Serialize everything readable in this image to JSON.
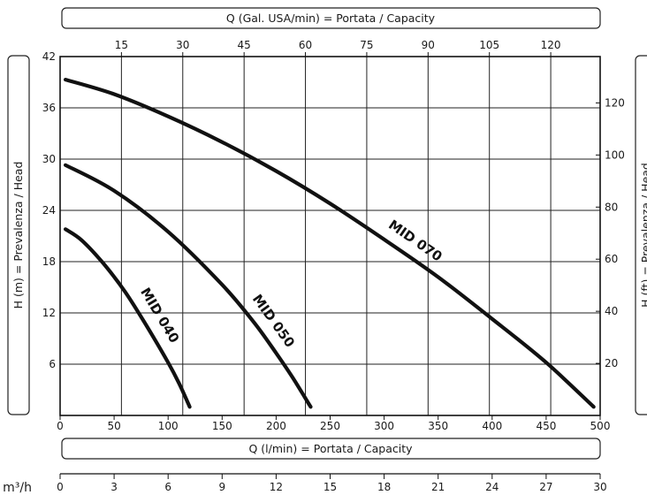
{
  "chart_data": {
    "type": "line",
    "top_axis_label": "Q (Gal. USA/min) = Portata / Capacity",
    "bottom_axis_label": "Q (l/min) = Portata / Capacity",
    "left_axis_label": "H (m) = Prevalenza / Head",
    "right_axis_label": "H (ft) = Prevalenza / Head",
    "m3h_unit": "m³/h",
    "x_lpm": {
      "min": 0,
      "max": 500,
      "ticks": [
        0,
        50,
        100,
        150,
        200,
        250,
        300,
        350,
        400,
        450,
        500
      ]
    },
    "x_gpm": {
      "ticks": [
        15,
        30,
        45,
        60,
        75,
        90,
        105,
        120
      ]
    },
    "x_m3h": {
      "ticks": [
        0,
        3,
        6,
        9,
        12,
        15,
        18,
        21,
        24,
        27,
        30
      ]
    },
    "y_m": {
      "min": 0,
      "max": 42,
      "ticks": [
        6,
        12,
        18,
        24,
        30,
        36,
        42
      ]
    },
    "y_ft": {
      "ticks": [
        20,
        40,
        60,
        80,
        100,
        120
      ]
    },
    "grid": true,
    "series": [
      {
        "name": "MID 040",
        "x": [
          5,
          20,
          40,
          60,
          80,
          100,
          110,
          120
        ],
        "y": [
          21.8,
          20.5,
          17.8,
          14.5,
          10.5,
          6.2,
          3.8,
          1.0
        ]
      },
      {
        "name": "MID 050",
        "x": [
          5,
          50,
          100,
          150,
          180,
          200,
          215,
          232
        ],
        "y": [
          29.3,
          26.3,
          21.5,
          15.3,
          10.8,
          7.3,
          4.5,
          1.0
        ]
      },
      {
        "name": "MID 070",
        "x": [
          5,
          50,
          100,
          150,
          200,
          250,
          300,
          350,
          400,
          450,
          494
        ],
        "y": [
          39.3,
          37.6,
          35.0,
          32.0,
          28.6,
          24.8,
          20.6,
          16.2,
          11.3,
          6.2,
          1.0
        ]
      }
    ]
  }
}
